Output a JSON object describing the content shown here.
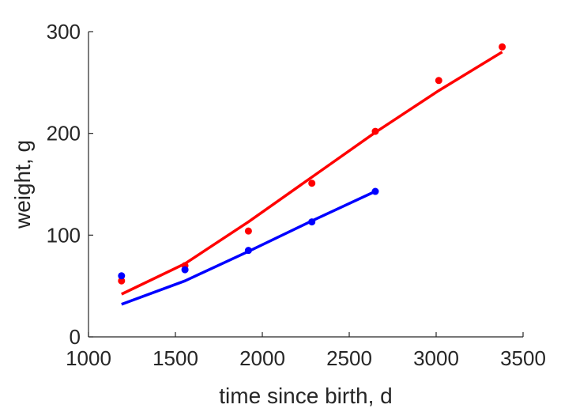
{
  "chart_data": {
    "type": "scatter",
    "xlabel": "time since birth, d",
    "ylabel": "weight, g",
    "xlim": [
      1000,
      3500
    ],
    "ylim": [
      0,
      300
    ],
    "xticks": [
      1000,
      1500,
      2000,
      2500,
      3000,
      3500
    ],
    "yticks": [
      0,
      100,
      200,
      300
    ],
    "xtick_labels": [
      "1000",
      "1500",
      "2000",
      "2500",
      "3000",
      "3500"
    ],
    "ytick_labels": [
      "0",
      "100",
      "200",
      "300"
    ],
    "grid": false,
    "series": [
      {
        "color": "#ff0000",
        "points": [
          {
            "x": 1190,
            "y": 55
          },
          {
            "x": 1555,
            "y": 70
          },
          {
            "x": 1920,
            "y": 104
          },
          {
            "x": 2285,
            "y": 151
          },
          {
            "x": 2650,
            "y": 202
          },
          {
            "x": 3015,
            "y": 252
          },
          {
            "x": 3380,
            "y": 285
          }
        ],
        "fit": [
          {
            "x": 1190,
            "y": 42
          },
          {
            "x": 1555,
            "y": 72
          },
          {
            "x": 1920,
            "y": 113
          },
          {
            "x": 2285,
            "y": 157
          },
          {
            "x": 2650,
            "y": 201
          },
          {
            "x": 3015,
            "y": 242
          },
          {
            "x": 3380,
            "y": 280
          }
        ]
      },
      {
        "color": "#0000ff",
        "points": [
          {
            "x": 1190,
            "y": 60
          },
          {
            "x": 1555,
            "y": 66
          },
          {
            "x": 1920,
            "y": 85
          },
          {
            "x": 2285,
            "y": 113
          },
          {
            "x": 2650,
            "y": 143
          }
        ],
        "fit": [
          {
            "x": 1190,
            "y": 32
          },
          {
            "x": 1555,
            "y": 55
          },
          {
            "x": 1920,
            "y": 84
          },
          {
            "x": 2285,
            "y": 114
          },
          {
            "x": 2650,
            "y": 143
          }
        ]
      }
    ]
  }
}
